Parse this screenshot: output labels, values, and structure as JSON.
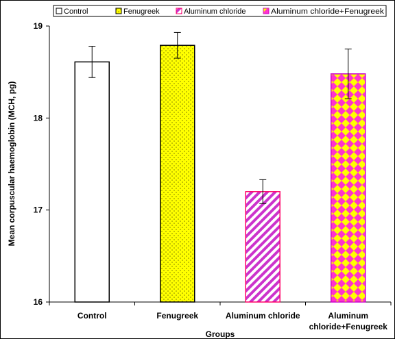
{
  "chart_data": {
    "type": "bar",
    "categories": [
      "Control",
      "Fenugreek",
      "Aluminum chloride",
      "Aluminum chloride+Fenugreek"
    ],
    "category_label_lines": [
      [
        "Control"
      ],
      [
        "Fenugreek"
      ],
      [
        "Aluminum chloride"
      ],
      [
        "Aluminum",
        "chloride+Fenugreek"
      ]
    ],
    "values": [
      18.61,
      18.79,
      17.2,
      18.48
    ],
    "errors": [
      0.17,
      0.14,
      0.13,
      0.27
    ],
    "ylim": [
      16,
      19
    ],
    "yticks": [
      "16",
      "17",
      "18",
      "19"
    ],
    "xlabel": "Groups",
    "ylabel": "Mean corpuscular haemoglobin (MCH, pg)",
    "legend": {
      "position": "top",
      "entries": [
        "Control",
        "Fenugreek",
        "Aluminum chloride",
        "Aluminum chloride+Fenugreek"
      ]
    },
    "series_styles": [
      {
        "fill": "#ffffff",
        "edge": "#000000",
        "pattern": "none"
      },
      {
        "fill": "#ffff00",
        "edge": "#000000",
        "pattern": "dots",
        "accent": "#808000"
      },
      {
        "fill": "#ffffff",
        "edge": "#ff0066",
        "pattern": "diagonal",
        "accent": "#cc33cc"
      },
      {
        "fill": "#ffff00",
        "edge": "#cc00cc",
        "pattern": "checker",
        "accent": "#ff33cc"
      }
    ],
    "grid": false
  }
}
